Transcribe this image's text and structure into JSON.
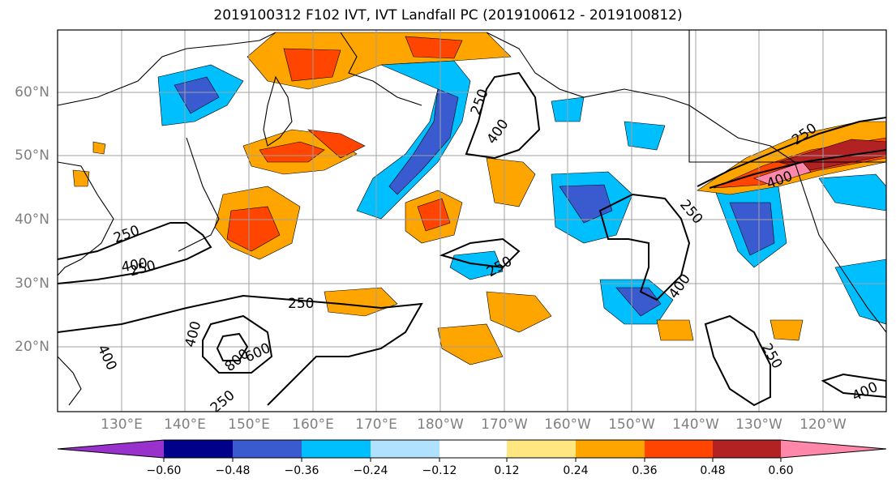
{
  "title": "2019100312 F102 IVT, IVT Landfall PC (2019100612 - 2019100812)",
  "lat_labels": [
    "60°N",
    "50°N",
    "40°N",
    "30°N",
    "20°N"
  ],
  "lon_labels": [
    "130°E",
    "140°E",
    "150°E",
    "160°E",
    "170°E",
    "180°W",
    "170°W",
    "160°W",
    "150°W",
    "140°W",
    "130°W",
    "120°W"
  ],
  "colorbar": {
    "colors": [
      "#9932CC",
      "#00008B",
      "#3A5BCF",
      "#00BFFF",
      "#B0E2FF",
      "#FFFFFF",
      "#FFE680",
      "#FFA500",
      "#FF4500",
      "#B22222",
      "#FF88AA"
    ],
    "tick_labels": [
      "−0.60",
      "−0.48",
      "−0.36",
      "−0.24",
      "−0.12",
      "0.12",
      "0.24",
      "0.36",
      "0.48",
      "0.60"
    ]
  },
  "contour_labels": [
    "250",
    "400",
    "250",
    "400",
    "250",
    "400",
    "250",
    "400",
    "250",
    "400",
    "600",
    "800",
    "400",
    "250",
    "250",
    "250",
    "400",
    "250"
  ]
}
